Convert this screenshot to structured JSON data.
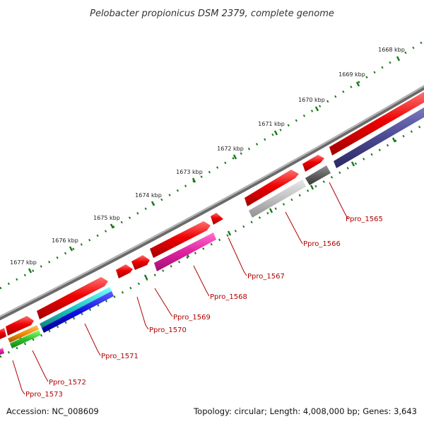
{
  "title": "Pelobacter propionicus DSM 2379, complete genome",
  "footer": {
    "accession": "Accession: NC_008609",
    "summary": "Topology: circular; Length: 4,008,000 bp; Genes: 3,643"
  },
  "kbp_labels": [
    "1668 kbp",
    "1669 kbp",
    "1670 kbp",
    "1671 kbp",
    "1672 kbp",
    "1673 kbp",
    "1674 kbp",
    "1675 kbp",
    "1676 kbp",
    "1677 kbp"
  ],
  "gene_labels": [
    "Ppro_1565",
    "Ppro_1566",
    "Ppro_1567",
    "Ppro_1568",
    "Ppro_1569",
    "Ppro_1570",
    "Ppro_1571",
    "Ppro_1572",
    "Ppro_1573"
  ],
  "colors": {
    "backbone": "#808080",
    "gene_red": "#ee0000",
    "tick_green": "#1a7a1a",
    "label_red": "#b00000"
  }
}
